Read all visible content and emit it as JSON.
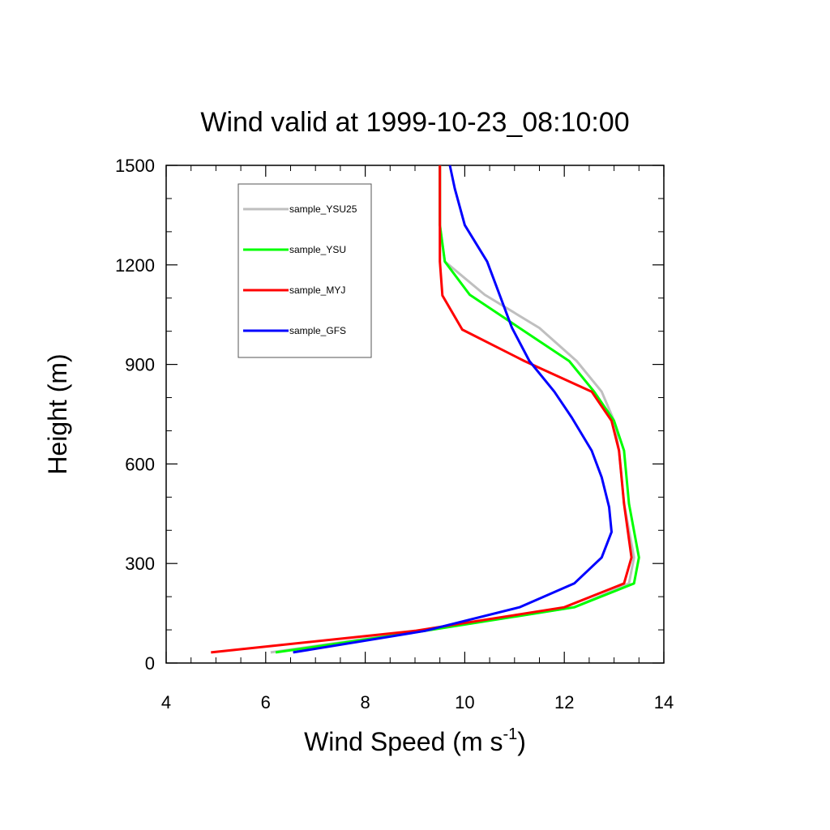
{
  "chart_data": {
    "type": "line",
    "title": "Wind valid at 1999-10-23_08:10:00",
    "xlabel": "Wind Speed (m s",
    "xlabel_sup": "-1",
    "xlabel_end": ")",
    "ylabel": "Height (m)",
    "xlim": [
      4,
      14
    ],
    "ylim": [
      0,
      1500
    ],
    "x_ticks": [
      4,
      6,
      8,
      10,
      12,
      14
    ],
    "y_ticks": [
      0,
      300,
      600,
      900,
      1200,
      1500
    ],
    "legend_position": "top-left",
    "series": [
      {
        "name": "sample_YSU25",
        "color": "#bfbfbf",
        "points": [
          [
            6.1,
            32
          ],
          [
            9.1,
            97
          ],
          [
            12.2,
            168
          ],
          [
            13.3,
            240
          ],
          [
            13.4,
            318
          ],
          [
            13.2,
            480
          ],
          [
            13.1,
            640
          ],
          [
            13.0,
            730
          ],
          [
            12.75,
            818
          ],
          [
            12.25,
            910
          ],
          [
            11.5,
            1010
          ],
          [
            10.4,
            1110
          ],
          [
            9.6,
            1210
          ],
          [
            9.5,
            1320
          ],
          [
            9.5,
            1500
          ]
        ]
      },
      {
        "name": "sample_YSU",
        "color": "#00ff00",
        "points": [
          [
            6.2,
            32
          ],
          [
            9.2,
            97
          ],
          [
            12.2,
            168
          ],
          [
            13.4,
            240
          ],
          [
            13.5,
            318
          ],
          [
            13.3,
            480
          ],
          [
            13.2,
            640
          ],
          [
            13.0,
            730
          ],
          [
            12.6,
            818
          ],
          [
            12.1,
            910
          ],
          [
            11.1,
            1010
          ],
          [
            10.1,
            1110
          ],
          [
            9.6,
            1210
          ],
          [
            9.5,
            1320
          ],
          [
            9.5,
            1500
          ]
        ]
      },
      {
        "name": "sample_MYJ",
        "color": "#ff0000",
        "points": [
          [
            4.9,
            32
          ],
          [
            9.0,
            97
          ],
          [
            12.0,
            168
          ],
          [
            13.2,
            240
          ],
          [
            13.35,
            318
          ],
          [
            13.2,
            480
          ],
          [
            13.1,
            640
          ],
          [
            12.95,
            730
          ],
          [
            12.55,
            818
          ],
          [
            11.2,
            910
          ],
          [
            9.95,
            1005
          ],
          [
            9.55,
            1108
          ],
          [
            9.5,
            1210
          ],
          [
            9.5,
            1500
          ]
        ]
      },
      {
        "name": "sample_GFS",
        "color": "#0000ff",
        "points": [
          [
            6.55,
            32
          ],
          [
            9.2,
            97
          ],
          [
            11.1,
            168
          ],
          [
            12.2,
            240
          ],
          [
            12.75,
            318
          ],
          [
            12.95,
            395
          ],
          [
            12.9,
            470
          ],
          [
            12.75,
            560
          ],
          [
            12.55,
            640
          ],
          [
            12.15,
            740
          ],
          [
            11.8,
            818
          ],
          [
            11.3,
            910
          ],
          [
            10.95,
            1010
          ],
          [
            10.45,
            1210
          ],
          [
            10.0,
            1320
          ],
          [
            9.8,
            1430
          ],
          [
            9.7,
            1500
          ]
        ]
      }
    ]
  }
}
